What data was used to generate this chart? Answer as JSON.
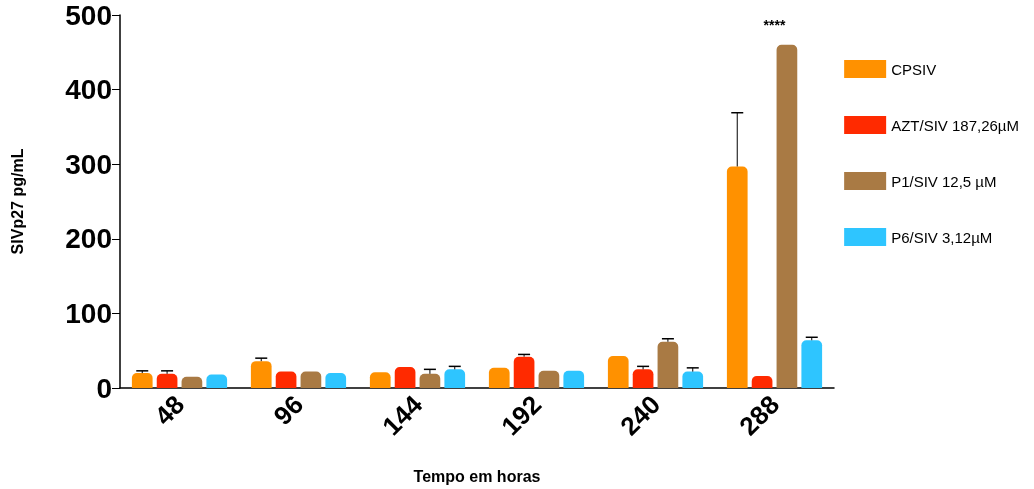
{
  "chart_data": {
    "type": "bar",
    "xlabel": "Tempo em horas",
    "ylabel": "SIVp27 pg/mL",
    "categories": [
      "48",
      "96",
      "144",
      "192",
      "240",
      "288"
    ],
    "series": [
      {
        "name": "CPSIV",
        "color": "#ff9100",
        "values": [
          20,
          36,
          21,
          27,
          43,
          297
        ],
        "errors": [
          3,
          4,
          null,
          null,
          null,
          72
        ]
      },
      {
        "name": "AZT/SIV 187,26µM",
        "color": "#ff2a00",
        "values": [
          19,
          22,
          28,
          42,
          25,
          16
        ],
        "errors": [
          4,
          null,
          null,
          3,
          4,
          null
        ]
      },
      {
        "name": "P1/SIV 12,5 µM",
        "color": "#a97a44",
        "values": [
          15,
          22,
          19,
          23,
          62,
          460
        ],
        "errors": [
          null,
          null,
          6,
          null,
          4,
          null
        ]
      },
      {
        "name": "P6/SIV 3,12µM",
        "color": "#2ec5ff",
        "values": [
          18,
          20,
          25,
          23,
          22,
          64
        ],
        "errors": [
          null,
          null,
          4,
          null,
          5,
          4
        ]
      }
    ],
    "ylim": [
      0,
      500
    ],
    "yticks": [
      0,
      100,
      200,
      300,
      400,
      500
    ],
    "grid": false,
    "legend": "right",
    "annotations": [
      "****"
    ]
  }
}
